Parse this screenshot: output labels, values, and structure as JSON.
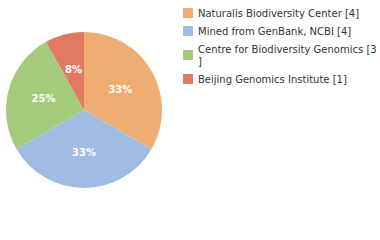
{
  "chart_data": {
    "type": "pie",
    "categories": [
      "Naturalis Biodiversity Center [4]",
      "Mined from GenBank, NCBI [4]",
      "Centre for Biodiversity Genomics [3]",
      "Beijing Genomics Institute [1]"
    ],
    "values": [
      33,
      33,
      25,
      8
    ],
    "value_labels": [
      "33%",
      "33%",
      "25%",
      "8%"
    ],
    "colors": [
      "#f0ad73",
      "#a0bce2",
      "#a4cb7b",
      "#e07a62"
    ],
    "data_labels": true,
    "legend": "right"
  }
}
